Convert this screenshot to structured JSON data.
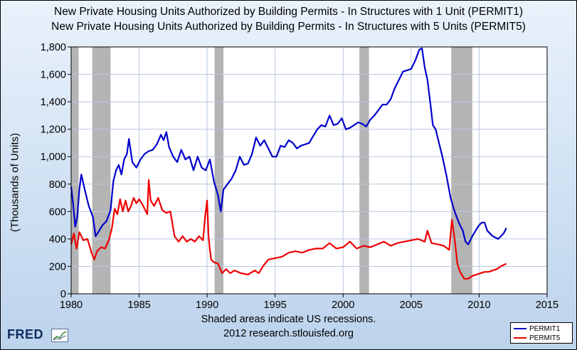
{
  "titles": {
    "line1": "New Private Housing Units Authorized by Building Permits - In Structures with 1 Unit (PERMIT1)",
    "line2": "New Private Housing Units Authorized by Building Permits - In Structures with 5 Units (PERMIT5)"
  },
  "footer": {
    "recession_note": "Shaded areas indicate US recessions.",
    "source": "2012 research.stlouisfed.org"
  },
  "logo": {
    "text": "FRED"
  },
  "colors": {
    "series1": "#0000cc",
    "series2": "#ee0000",
    "recession": "#b4b4b4",
    "plot_background": "#ffffff",
    "grid": "#b8c8e0"
  },
  "chart_data": {
    "type": "line",
    "ylabel": "(Thousands of Units)",
    "xlabel": "",
    "xlim": [
      1980,
      2015
    ],
    "ylim": [
      0,
      1800
    ],
    "xticks": [
      "1980",
      "1985",
      "1990",
      "1995",
      "2000",
      "2005",
      "2010",
      "2015"
    ],
    "yticks": [
      "0",
      "200",
      "400",
      "600",
      "800",
      "1,000",
      "1,200",
      "1,400",
      "1,600",
      "1,800"
    ],
    "grid": true,
    "legend_position": "bottom-right",
    "recessions": [
      [
        1980.0,
        1980.55
      ],
      [
        1981.55,
        1982.9
      ],
      [
        1990.55,
        1991.2
      ],
      [
        2001.2,
        2001.9
      ],
      [
        2007.95,
        2009.5
      ]
    ],
    "series": [
      {
        "name": "PERMIT1",
        "x": [
          1980.0,
          1980.15,
          1980.3,
          1980.45,
          1980.6,
          1980.75,
          1981.0,
          1981.3,
          1981.6,
          1981.8,
          1982.0,
          1982.3,
          1982.6,
          1982.9,
          1983.1,
          1983.3,
          1983.5,
          1983.7,
          1983.9,
          1984.1,
          1984.25,
          1984.5,
          1984.8,
          1985.1,
          1985.4,
          1985.7,
          1986.0,
          1986.3,
          1986.6,
          1986.8,
          1987.0,
          1987.2,
          1987.5,
          1987.8,
          1988.1,
          1988.4,
          1988.7,
          1989.0,
          1989.3,
          1989.6,
          1989.9,
          1990.2,
          1990.5,
          1990.8,
          1991.0,
          1991.2,
          1991.5,
          1991.8,
          1992.1,
          1992.4,
          1992.7,
          1993.0,
          1993.3,
          1993.6,
          1993.9,
          1994.2,
          1994.5,
          1994.8,
          1995.1,
          1995.4,
          1995.7,
          1996.0,
          1996.3,
          1996.6,
          1996.9,
          1997.2,
          1997.5,
          1997.8,
          1998.1,
          1998.4,
          1998.7,
          1999.0,
          1999.3,
          1999.6,
          1999.9,
          2000.2,
          2000.5,
          2000.8,
          2001.1,
          2001.4,
          2001.7,
          2002.0,
          2002.3,
          2002.6,
          2002.9,
          2003.2,
          2003.5,
          2003.8,
          2004.1,
          2004.4,
          2004.7,
          2005.0,
          2005.3,
          2005.6,
          2005.8,
          2006.0,
          2006.2,
          2006.4,
          2006.6,
          2006.8,
          2007.0,
          2007.3,
          2007.6,
          2007.9,
          2008.2,
          2008.5,
          2008.8,
          2009.0,
          2009.2,
          2009.5,
          2009.8,
          2010.0,
          2010.2,
          2010.4,
          2010.6,
          2010.8,
          2011.0,
          2011.2,
          2011.4,
          2011.6,
          2011.8,
          2012.0
        ],
        "y": [
          780,
          650,
          490,
          560,
          760,
          870,
          760,
          640,
          560,
          420,
          450,
          500,
          530,
          610,
          820,
          900,
          940,
          870,
          980,
          1020,
          1130,
          960,
          920,
          980,
          1020,
          1040,
          1050,
          1090,
          1160,
          1120,
          1180,
          1070,
          1000,
          960,
          1050,
          980,
          1000,
          900,
          1000,
          920,
          900,
          980,
          820,
          720,
          600,
          760,
          800,
          840,
          900,
          1000,
          940,
          950,
          1020,
          1140,
          1080,
          1120,
          1060,
          1000,
          1000,
          1080,
          1070,
          1120,
          1100,
          1060,
          1080,
          1090,
          1100,
          1150,
          1200,
          1230,
          1220,
          1300,
          1230,
          1240,
          1280,
          1200,
          1210,
          1230,
          1250,
          1240,
          1220,
          1270,
          1300,
          1340,
          1380,
          1380,
          1420,
          1500,
          1560,
          1620,
          1630,
          1640,
          1700,
          1780,
          1790,
          1650,
          1560,
          1400,
          1230,
          1200,
          1120,
          1000,
          860,
          700,
          600,
          520,
          460,
          380,
          360,
          420,
          470,
          500,
          520,
          520,
          460,
          440,
          420,
          410,
          400,
          420,
          440,
          480
        ]
      },
      {
        "name": "PERMIT5",
        "x": [
          1980.0,
          1980.2,
          1980.4,
          1980.6,
          1980.9,
          1981.2,
          1981.5,
          1981.7,
          1981.9,
          1982.2,
          1982.5,
          1982.8,
          1983.0,
          1983.2,
          1983.4,
          1983.6,
          1983.8,
          1984.0,
          1984.2,
          1984.4,
          1984.6,
          1984.8,
          1985.0,
          1985.3,
          1985.6,
          1985.7,
          1985.85,
          1986.1,
          1986.4,
          1986.7,
          1987.0,
          1987.3,
          1987.6,
          1987.9,
          1988.2,
          1988.5,
          1988.8,
          1989.1,
          1989.4,
          1989.7,
          1989.85,
          1990.0,
          1990.1,
          1990.2,
          1990.3,
          1990.5,
          1990.8,
          1991.1,
          1991.4,
          1991.7,
          1992.0,
          1992.5,
          1993.0,
          1993.5,
          1993.8,
          1994.1,
          1994.5,
          1995.0,
          1995.5,
          1996.0,
          1996.5,
          1997.0,
          1997.5,
          1998.0,
          1998.5,
          1999.0,
          1999.5,
          2000.0,
          2000.5,
          2001.0,
          2001.5,
          2002.0,
          2002.5,
          2003.0,
          2003.5,
          2004.0,
          2004.5,
          2005.0,
          2005.5,
          2006.0,
          2006.2,
          2006.5,
          2007.0,
          2007.4,
          2007.8,
          2008.0,
          2008.2,
          2008.4,
          2008.6,
          2008.9,
          2009.2,
          2009.5,
          2009.8,
          2010.1,
          2010.4,
          2010.7,
          2011.0,
          2011.3,
          2011.6,
          2011.8,
          2012.0
        ],
        "y": [
          360,
          440,
          330,
          450,
          390,
          400,
          300,
          250,
          310,
          340,
          330,
          400,
          480,
          620,
          580,
          690,
          600,
          680,
          600,
          640,
          700,
          660,
          690,
          640,
          580,
          830,
          680,
          640,
          700,
          610,
          590,
          600,
          420,
          380,
          420,
          380,
          400,
          380,
          420,
          390,
          560,
          680,
          420,
          320,
          250,
          230,
          220,
          150,
          180,
          150,
          170,
          150,
          140,
          170,
          150,
          200,
          250,
          260,
          270,
          300,
          310,
          300,
          320,
          330,
          330,
          370,
          330,
          340,
          380,
          330,
          350,
          340,
          360,
          380,
          350,
          370,
          380,
          390,
          400,
          380,
          460,
          370,
          360,
          350,
          320,
          540,
          400,
          220,
          160,
          110,
          110,
          130,
          140,
          150,
          160,
          160,
          170,
          180,
          200,
          210,
          220
        ]
      }
    ]
  }
}
